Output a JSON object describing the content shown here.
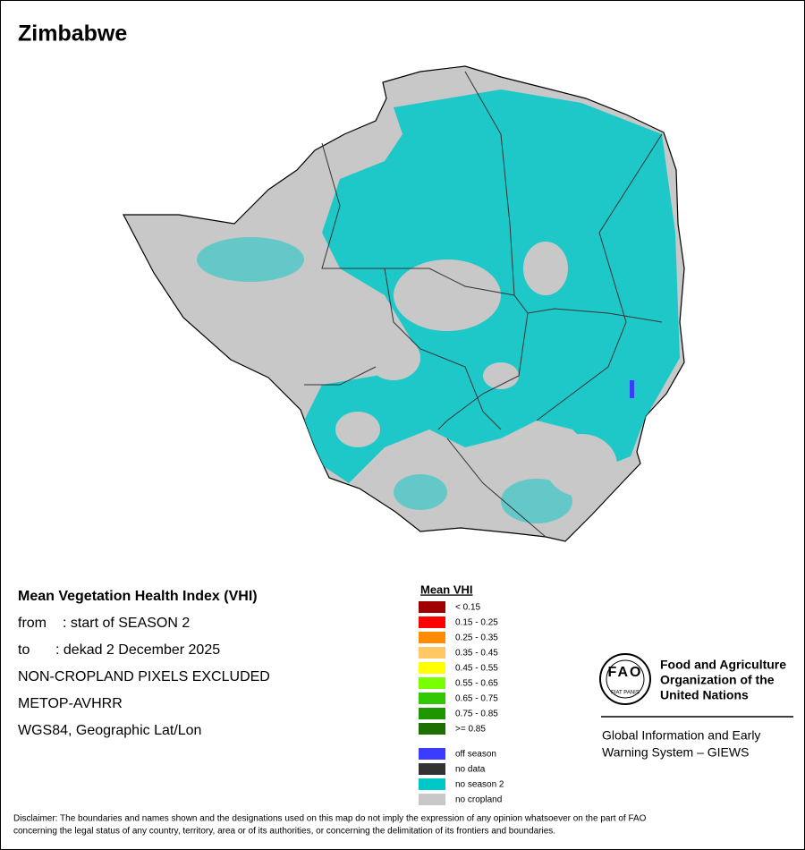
{
  "title": "Zimbabwe",
  "info": {
    "heading": "Mean Vegetation Health Index (VHI)",
    "period": [
      {
        "label": "from",
        "text": ": start of SEASON 2"
      },
      {
        "label": "to",
        "text": ": dekad 2 December 2025"
      }
    ],
    "notes": [
      "NON-CROPLAND PIXELS EXCLUDED",
      "METOP-AVHRR",
      "WGS84, Geographic Lat/Lon"
    ]
  },
  "legend": {
    "title": "Mean VHI",
    "classes": [
      {
        "label": "< 0.15",
        "color": "#a00000"
      },
      {
        "label": "0.15 - 0.25",
        "color": "#ff0000"
      },
      {
        "label": "0.25 - 0.35",
        "color": "#ff8c00"
      },
      {
        "label": "0.35 - 0.45",
        "color": "#ffc864"
      },
      {
        "label": "0.45 - 0.55",
        "color": "#ffff00"
      },
      {
        "label": "0.55 - 0.65",
        "color": "#78ff00"
      },
      {
        "label": "0.65 - 0.75",
        "color": "#32c800"
      },
      {
        "label": "0.75 - 0.85",
        "color": "#1e9600"
      },
      {
        "label": ">= 0.85",
        "color": "#1e6e00"
      }
    ],
    "other": [
      {
        "label": "off season",
        "color": "#3c3cff"
      },
      {
        "label": "no data",
        "color": "#323232"
      },
      {
        "label": "no season 2",
        "color": "#00c8c8"
      },
      {
        "label": "no cropland",
        "color": "#c8c8c8"
      }
    ]
  },
  "logo": {
    "letters": "FAO",
    "motto": "FIAT PANIS",
    "org": [
      "Food and Agriculture",
      "Organization of the",
      "United Nations"
    ],
    "system": [
      "Global Information and Early",
      "Warning System – GIEWS"
    ]
  },
  "disclaimer": [
    "Disclaimer: The boundaries and names shown and the designations used on this map do not imply the expression of any opinion whatsoever on the part of FAO",
    "concerning the legal status of any country, territory, area or of its authorities, or concerning the delimitation of its frontiers and boundaries."
  ]
}
